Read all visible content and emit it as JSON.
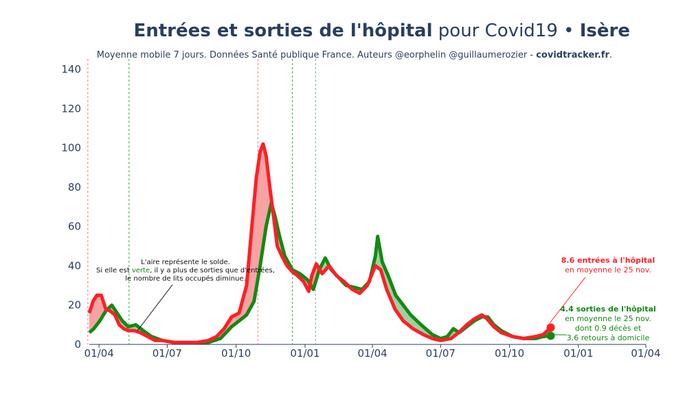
{
  "title": {
    "bold_part": "Entrées et sorties de l'hôpital",
    "regular_part": " pour Covid19 • ",
    "region": "Isère"
  },
  "subtitle": {
    "text": "Moyenne mobile 7 jours. Données Santé publique France. Auteurs @eorphelin @guillaumerozier - ",
    "site": "covidtracker.fr",
    "suffix": "."
  },
  "annotation_solde": {
    "line1": "L'aire représente le solde.",
    "line2_pre": "Si elle est ",
    "line2_green": "verte",
    "line2_post": ", il y a plus de sorties que d'entrées,",
    "line3": "le nombre de lits occupés diminue."
  },
  "annotation_entrees": {
    "line1": "8.6 entrées à l'hôpital",
    "line2": "en moyenne le 25 nov."
  },
  "annotation_sorties": {
    "line1": "4.4 sorties de l'hôpital",
    "line2": "en moyenne le 25 nov.",
    "line3": "dont 0.9 décès et",
    "line4": "3.6 retours à domicile"
  },
  "colors": {
    "entrees": "#ff1f26",
    "sorties": "#138a13",
    "fill_red": "#f7a3a3",
    "fill_green": "#9fd09f",
    "text": "#2a3f5f"
  },
  "chart_data": {
    "type": "line",
    "x_ticks": [
      "01/04",
      "01/07",
      "01/10",
      "01/01",
      "01/04",
      "01/07",
      "01/10",
      "01/01",
      "01/04"
    ],
    "x_tick_dates": [
      "2020-04-01",
      "2020-07-01",
      "2020-10-01",
      "2021-01-01",
      "2021-04-01",
      "2021-07-01",
      "2021-10-01",
      "2022-01-01",
      "2022-04-01"
    ],
    "y_ticks": [
      0,
      20,
      40,
      60,
      80,
      100,
      120,
      140
    ],
    "ylim": [
      0,
      140
    ],
    "xlim": [
      "2020-03-19",
      "2022-04-01"
    ],
    "vlines": [
      {
        "date": "2020-03-17",
        "color": "#ff7070"
      },
      {
        "date": "2020-05-11",
        "color": "#33aa33"
      },
      {
        "date": "2020-10-30",
        "color": "#ff7070"
      },
      {
        "date": "2020-12-15",
        "color": "#33aa33"
      },
      {
        "date": "2021-01-15",
        "color": "#5ab0a0"
      }
    ],
    "series": [
      {
        "name": "entrées",
        "points": [
          [
            "2020-03-19",
            16
          ],
          [
            "2020-03-24",
            22
          ],
          [
            "2020-03-29",
            25
          ],
          [
            "2020-04-04",
            25
          ],
          [
            "2020-04-10",
            18
          ],
          [
            "2020-04-16",
            17
          ],
          [
            "2020-04-22",
            15
          ],
          [
            "2020-04-28",
            10
          ],
          [
            "2020-05-04",
            8
          ],
          [
            "2020-05-10",
            7
          ],
          [
            "2020-05-18",
            7
          ],
          [
            "2020-05-26",
            6
          ],
          [
            "2020-06-05",
            4
          ],
          [
            "2020-06-15",
            2
          ],
          [
            "2020-06-25",
            2
          ],
          [
            "2020-07-10",
            1
          ],
          [
            "2020-07-25",
            1
          ],
          [
            "2020-08-10",
            1
          ],
          [
            "2020-08-25",
            2
          ],
          [
            "2020-09-05",
            4
          ],
          [
            "2020-09-15",
            8
          ],
          [
            "2020-09-25",
            14
          ],
          [
            "2020-10-05",
            16
          ],
          [
            "2020-10-15",
            30
          ],
          [
            "2020-10-22",
            60
          ],
          [
            "2020-10-28",
            85
          ],
          [
            "2020-11-02",
            98
          ],
          [
            "2020-11-06",
            102
          ],
          [
            "2020-11-10",
            96
          ],
          [
            "2020-11-15",
            80
          ],
          [
            "2020-11-20",
            65
          ],
          [
            "2020-11-25",
            50
          ],
          [
            "2020-12-01",
            45
          ],
          [
            "2020-12-08",
            40
          ],
          [
            "2020-12-15",
            37
          ],
          [
            "2020-12-22",
            35
          ],
          [
            "2020-12-30",
            32
          ],
          [
            "2021-01-06",
            27
          ],
          [
            "2021-01-10",
            35
          ],
          [
            "2021-01-16",
            41
          ],
          [
            "2021-01-24",
            36
          ],
          [
            "2021-02-02",
            40
          ],
          [
            "2021-02-12",
            35
          ],
          [
            "2021-02-22",
            32
          ],
          [
            "2021-03-05",
            28
          ],
          [
            "2021-03-15",
            26
          ],
          [
            "2021-03-25",
            30
          ],
          [
            "2021-04-05",
            40
          ],
          [
            "2021-04-12",
            38
          ],
          [
            "2021-04-20",
            28
          ],
          [
            "2021-05-01",
            18
          ],
          [
            "2021-05-12",
            12
          ],
          [
            "2021-05-25",
            8
          ],
          [
            "2021-06-08",
            5
          ],
          [
            "2021-06-20",
            3
          ],
          [
            "2021-07-01",
            2
          ],
          [
            "2021-07-15",
            3
          ],
          [
            "2021-07-25",
            6
          ],
          [
            "2021-08-05",
            10
          ],
          [
            "2021-08-15",
            13
          ],
          [
            "2021-08-25",
            15
          ],
          [
            "2021-09-01",
            13
          ],
          [
            "2021-09-10",
            9
          ],
          [
            "2021-09-20",
            6
          ],
          [
            "2021-10-05",
            4
          ],
          [
            "2021-10-20",
            3
          ],
          [
            "2021-11-05",
            4
          ],
          [
            "2021-11-15",
            5
          ],
          [
            "2021-11-25",
            8.6
          ]
        ]
      },
      {
        "name": "sorties",
        "points": [
          [
            "2020-03-19",
            6
          ],
          [
            "2020-03-25",
            8
          ],
          [
            "2020-04-02",
            12
          ],
          [
            "2020-04-10",
            17
          ],
          [
            "2020-04-18",
            20
          ],
          [
            "2020-04-25",
            16
          ],
          [
            "2020-05-02",
            12
          ],
          [
            "2020-05-10",
            9
          ],
          [
            "2020-05-20",
            10
          ],
          [
            "2020-05-30",
            7
          ],
          [
            "2020-06-10",
            4
          ],
          [
            "2020-06-25",
            2
          ],
          [
            "2020-07-10",
            1
          ],
          [
            "2020-07-25",
            1
          ],
          [
            "2020-08-10",
            1
          ],
          [
            "2020-08-25",
            1
          ],
          [
            "2020-09-10",
            3
          ],
          [
            "2020-09-25",
            9
          ],
          [
            "2020-10-05",
            12
          ],
          [
            "2020-10-15",
            15
          ],
          [
            "2020-10-25",
            22
          ],
          [
            "2020-11-02",
            40
          ],
          [
            "2020-11-10",
            60
          ],
          [
            "2020-11-17",
            72
          ],
          [
            "2020-11-22",
            65
          ],
          [
            "2020-11-28",
            55
          ],
          [
            "2020-12-05",
            45
          ],
          [
            "2020-12-15",
            38
          ],
          [
            "2020-12-25",
            36
          ],
          [
            "2021-01-04",
            33
          ],
          [
            "2021-01-12",
            28
          ],
          [
            "2021-01-20",
            38
          ],
          [
            "2021-01-28",
            44
          ],
          [
            "2021-02-05",
            38
          ],
          [
            "2021-02-15",
            34
          ],
          [
            "2021-02-25",
            30
          ],
          [
            "2021-03-08",
            29
          ],
          [
            "2021-03-18",
            28
          ],
          [
            "2021-03-28",
            32
          ],
          [
            "2021-04-05",
            45
          ],
          [
            "2021-04-08",
            55
          ],
          [
            "2021-04-14",
            42
          ],
          [
            "2021-04-22",
            35
          ],
          [
            "2021-05-02",
            25
          ],
          [
            "2021-05-12",
            20
          ],
          [
            "2021-05-22",
            15
          ],
          [
            "2021-06-05",
            10
          ],
          [
            "2021-06-20",
            5
          ],
          [
            "2021-07-01",
            3
          ],
          [
            "2021-07-10",
            4
          ],
          [
            "2021-07-18",
            8
          ],
          [
            "2021-07-26",
            6
          ],
          [
            "2021-08-05",
            9
          ],
          [
            "2021-08-15",
            12
          ],
          [
            "2021-08-25",
            14
          ],
          [
            "2021-09-02",
            14
          ],
          [
            "2021-09-10",
            10
          ],
          [
            "2021-09-20",
            7
          ],
          [
            "2021-10-05",
            4
          ],
          [
            "2021-10-20",
            3
          ],
          [
            "2021-11-05",
            3
          ],
          [
            "2021-11-15",
            4
          ],
          [
            "2021-11-25",
            4.4
          ]
        ]
      }
    ]
  }
}
